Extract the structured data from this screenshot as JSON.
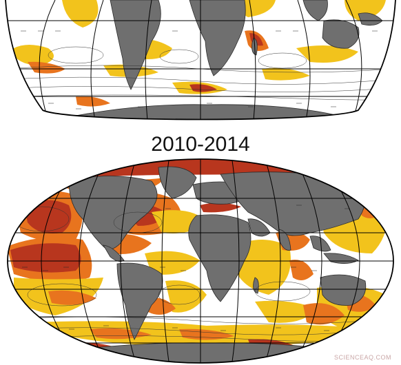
{
  "panel_bottom": {
    "title": "2010-2014"
  },
  "watermark": "SCIENCEAQ.COM",
  "colors": {
    "ocean": "#ffffff",
    "land": "#6f6f6f",
    "low": "#f2c31c",
    "mid": "#e8741e",
    "high": "#b8361e",
    "grid": "#000000"
  }
}
